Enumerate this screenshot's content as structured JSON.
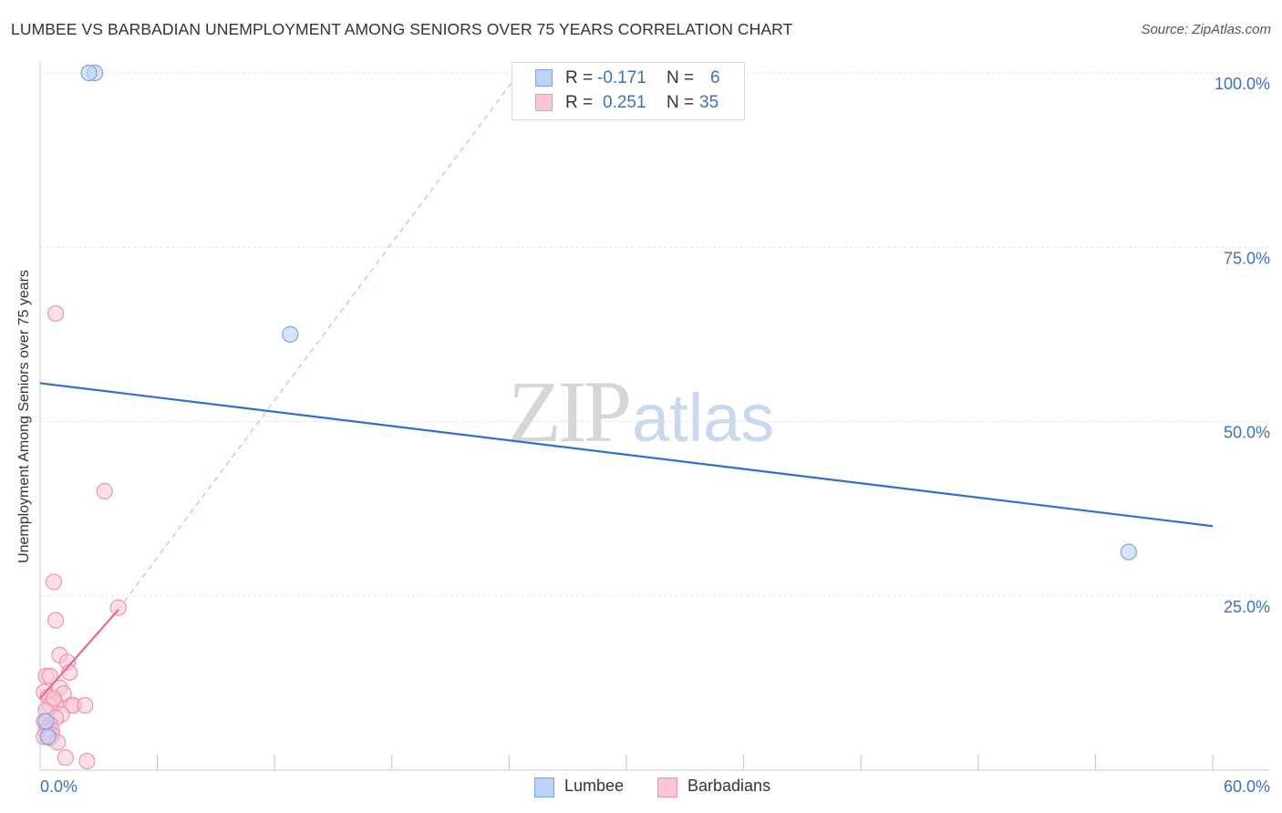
{
  "header": {
    "title": "LUMBEE VS BARBADIAN UNEMPLOYMENT AMONG SENIORS OVER 75 YEARS CORRELATION CHART",
    "source": "Source: ZipAtlas.com"
  },
  "watermark": {
    "zip": "ZIP",
    "atlas": "atlas"
  },
  "legend": {
    "rows": [
      {
        "r_label": "R =",
        "r_value": "-0.171",
        "n_label": "N =",
        "n_value": "6"
      },
      {
        "r_label": "R =",
        "r_value": "0.251",
        "n_label": "N =",
        "n_value": "35"
      }
    ]
  },
  "bottom_legend": {
    "lumbee": "Lumbee",
    "barbadians": "Barbadians"
  },
  "colors": {
    "lumbee_fill": "#bcd3f5",
    "lumbee_stroke": "#7aa3e6",
    "lumbee_line": "#2f6fd0",
    "barbadian_fill": "#fac6d5",
    "barbadian_stroke": "#ef93ae",
    "barbadian_line": "#e8668c",
    "tick_label": "#3b6fc8",
    "grid": "#e3e3e3"
  },
  "chart_data": {
    "type": "scatter",
    "title": "LUMBEE VS BARBADIAN UNEMPLOYMENT AMONG SENIORS OVER 75 YEARS CORRELATION CHART",
    "xlabel": "",
    "ylabel": "Unemployment Among Seniors over 75 years",
    "xlim": [
      0,
      60
    ],
    "ylim": [
      0,
      100
    ],
    "x_tick_labels": [
      "0.0%",
      "60.0%"
    ],
    "y_ticks": [
      25,
      50,
      75,
      100
    ],
    "y_tick_labels": [
      "25.0%",
      "50.0%",
      "75.0%",
      "100.0%"
    ],
    "grid": true,
    "legend_position": "top-center",
    "series": [
      {
        "name": "Lumbee",
        "r": -0.171,
        "n": 6,
        "points": [
          {
            "x": 2.8,
            "y": 100
          },
          {
            "x": 2.5,
            "y": 100
          },
          {
            "x": 12.8,
            "y": 62.5
          },
          {
            "x": 55.7,
            "y": 31.3
          },
          {
            "x": 0.3,
            "y": 7.0
          },
          {
            "x": 0.4,
            "y": 4.8
          }
        ],
        "trend": {
          "x0": 0,
          "y0": 55.5,
          "x1": 60,
          "y1": 35.0
        }
      },
      {
        "name": "Barbadians",
        "r": 0.251,
        "n": 35,
        "points": [
          {
            "x": 0.8,
            "y": 65.5
          },
          {
            "x": 3.3,
            "y": 40.0
          },
          {
            "x": 0.7,
            "y": 27.0
          },
          {
            "x": 4.0,
            "y": 23.3
          },
          {
            "x": 0.8,
            "y": 21.5
          },
          {
            "x": 1.0,
            "y": 16.5
          },
          {
            "x": 1.4,
            "y": 15.5
          },
          {
            "x": 1.5,
            "y": 14.0
          },
          {
            "x": 0.3,
            "y": 13.5
          },
          {
            "x": 0.5,
            "y": 13.5
          },
          {
            "x": 1.0,
            "y": 11.8
          },
          {
            "x": 1.2,
            "y": 11.0
          },
          {
            "x": 0.2,
            "y": 11.2
          },
          {
            "x": 0.4,
            "y": 10.5
          },
          {
            "x": 0.7,
            "y": 10.0
          },
          {
            "x": 0.8,
            "y": 9.6
          },
          {
            "x": 0.5,
            "y": 9.3
          },
          {
            "x": 1.6,
            "y": 9.3
          },
          {
            "x": 1.7,
            "y": 9.3
          },
          {
            "x": 2.3,
            "y": 9.3
          },
          {
            "x": 0.3,
            "y": 8.6
          },
          {
            "x": 1.1,
            "y": 8.0
          },
          {
            "x": 0.8,
            "y": 7.5
          },
          {
            "x": 0.2,
            "y": 7.0
          },
          {
            "x": 0.5,
            "y": 6.5
          },
          {
            "x": 0.4,
            "y": 6.0
          },
          {
            "x": 0.6,
            "y": 5.8
          },
          {
            "x": 0.3,
            "y": 5.5
          },
          {
            "x": 0.6,
            "y": 5.0
          },
          {
            "x": 0.2,
            "y": 4.8
          },
          {
            "x": 0.5,
            "y": 4.6
          },
          {
            "x": 0.9,
            "y": 4.0
          },
          {
            "x": 1.3,
            "y": 1.8
          },
          {
            "x": 2.4,
            "y": 1.3
          },
          {
            "x": 0.7,
            "y": 10.3
          }
        ],
        "trend": {
          "x0": 0,
          "y0": 10.3,
          "x1": 4.0,
          "y1": 23.0
        },
        "trend_extension": {
          "x0": 4.0,
          "y0": 23.0,
          "x1": 24.5,
          "y1": 100
        }
      }
    ]
  }
}
